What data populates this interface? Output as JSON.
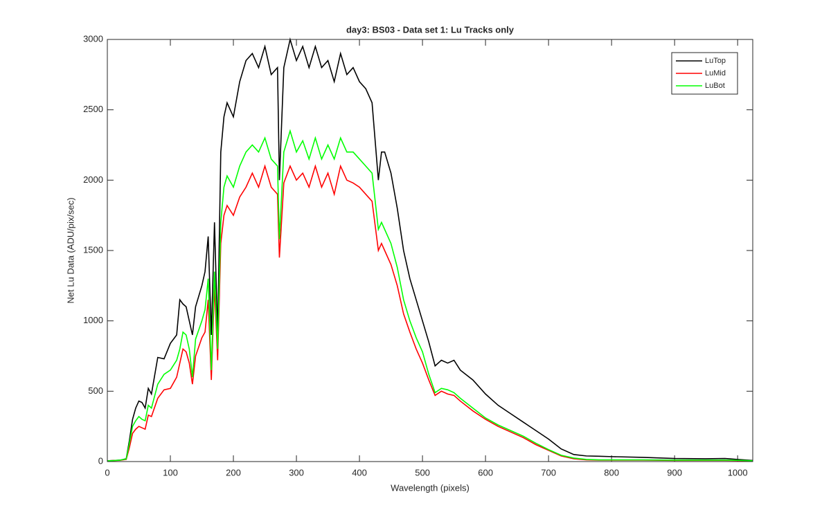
{
  "chart_data": {
    "type": "line",
    "title": "day3: BS03 - Data set 1: Lu Tracks only",
    "xlabel": "Wavelength (pixels)",
    "ylabel": "Net Lu Data (ADU/pix/sec)",
    "x": [
      0,
      10,
      20,
      30,
      35,
      40,
      45,
      50,
      55,
      60,
      65,
      70,
      80,
      90,
      100,
      110,
      115,
      120,
      125,
      130,
      135,
      140,
      150,
      155,
      160,
      165,
      170,
      175,
      180,
      185,
      190,
      200,
      210,
      220,
      230,
      240,
      250,
      260,
      270,
      273,
      280,
      290,
      300,
      310,
      320,
      330,
      340,
      350,
      360,
      370,
      380,
      390,
      400,
      410,
      420,
      430,
      435,
      440,
      450,
      460,
      470,
      480,
      490,
      500,
      510,
      520,
      530,
      540,
      550,
      560,
      580,
      600,
      620,
      640,
      660,
      680,
      700,
      720,
      740,
      760,
      780,
      800,
      850,
      900,
      950,
      980,
      1000,
      1024
    ],
    "series": [
      {
        "name": "LuTop",
        "color": "#000000",
        "values": [
          5,
          8,
          10,
          20,
          150,
          300,
          380,
          430,
          420,
          380,
          520,
          480,
          740,
          730,
          840,
          900,
          1150,
          1120,
          1100,
          1000,
          900,
          1100,
          1250,
          1350,
          1600,
          900,
          1700,
          900,
          2200,
          2450,
          2550,
          2450,
          2700,
          2850,
          2900,
          2800,
          2950,
          2750,
          2800,
          2000,
          2800,
          3000,
          2850,
          2950,
          2800,
          2950,
          2800,
          2850,
          2700,
          2900,
          2750,
          2800,
          2700,
          2650,
          2550,
          2000,
          2200,
          2200,
          2050,
          1800,
          1500,
          1300,
          1150,
          1000,
          850,
          680,
          720,
          700,
          720,
          650,
          580,
          480,
          400,
          340,
          280,
          220,
          160,
          90,
          50,
          40,
          38,
          35,
          30,
          22,
          20,
          22,
          15,
          8
        ]
      },
      {
        "name": "LuMid",
        "color": "#ff0000",
        "values": [
          5,
          7,
          9,
          15,
          100,
          200,
          230,
          250,
          240,
          230,
          330,
          320,
          450,
          510,
          520,
          600,
          700,
          800,
          780,
          700,
          550,
          750,
          880,
          920,
          1150,
          580,
          1250,
          720,
          1550,
          1750,
          1820,
          1750,
          1880,
          1950,
          2050,
          1950,
          2100,
          1950,
          1900,
          1450,
          1980,
          2100,
          2000,
          2050,
          1950,
          2100,
          1950,
          2050,
          1900,
          2100,
          2000,
          1980,
          1950,
          1900,
          1850,
          1500,
          1550,
          1500,
          1400,
          1250,
          1050,
          920,
          800,
          700,
          580,
          470,
          500,
          480,
          470,
          430,
          360,
          300,
          250,
          210,
          170,
          120,
          80,
          40,
          20,
          12,
          10,
          10,
          10,
          8,
          8,
          8,
          7,
          5
        ]
      },
      {
        "name": "LuBot",
        "color": "#00ff00",
        "values": [
          5,
          7,
          10,
          18,
          130,
          250,
          290,
          320,
          300,
          290,
          400,
          380,
          550,
          620,
          650,
          720,
          800,
          920,
          900,
          800,
          600,
          870,
          1000,
          1080,
          1300,
          650,
          1350,
          800,
          1700,
          1950,
          2030,
          1950,
          2100,
          2200,
          2250,
          2200,
          2300,
          2150,
          2100,
          1580,
          2200,
          2350,
          2200,
          2280,
          2150,
          2300,
          2150,
          2250,
          2150,
          2300,
          2200,
          2200,
          2150,
          2100,
          2050,
          1650,
          1700,
          1650,
          1550,
          1380,
          1150,
          1000,
          880,
          780,
          620,
          490,
          520,
          510,
          490,
          450,
          380,
          310,
          260,
          220,
          180,
          130,
          85,
          45,
          25,
          15,
          12,
          12,
          12,
          10,
          10,
          10,
          9,
          6
        ]
      }
    ],
    "xlim": [
      0,
      1024
    ],
    "xticks": [
      0,
      100,
      200,
      300,
      400,
      500,
      600,
      700,
      800,
      900,
      1000
    ],
    "ylim": [
      0,
      3000
    ],
    "yticks": [
      0,
      500,
      1000,
      1500,
      2000,
      2500,
      3000
    ],
    "legend": "northeast"
  }
}
